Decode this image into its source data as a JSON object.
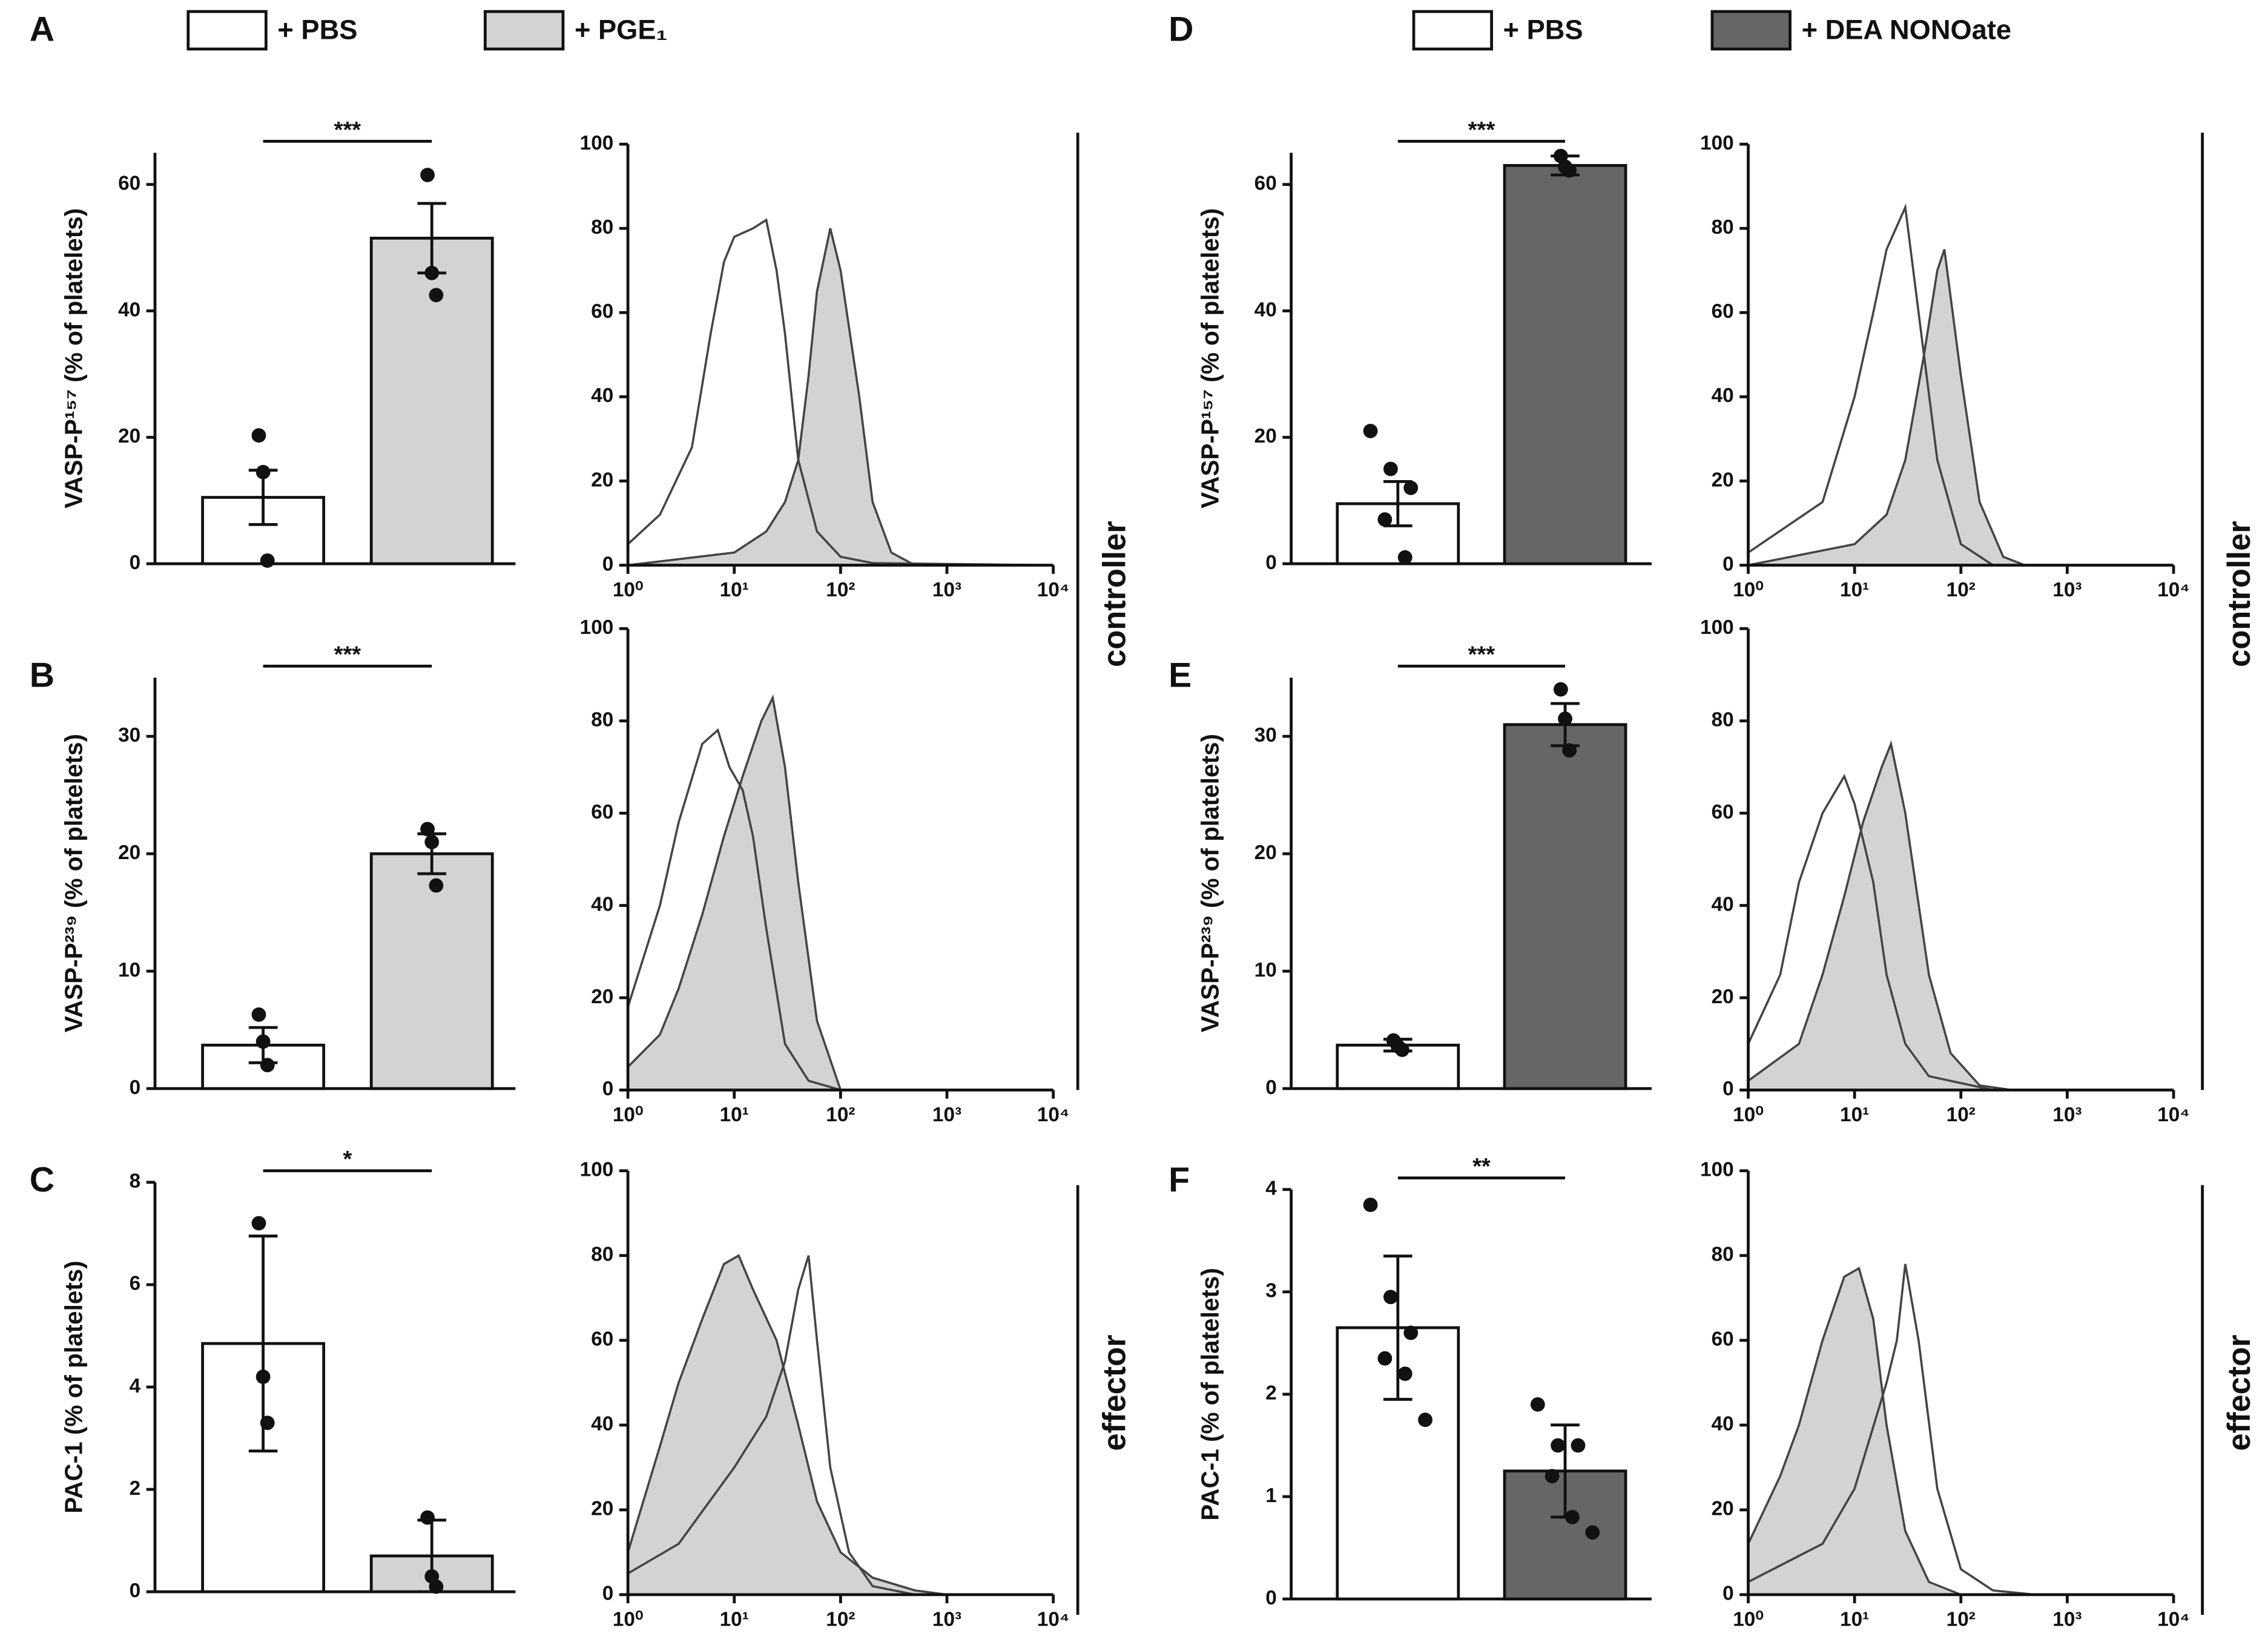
{
  "legends": [
    {
      "items": [
        {
          "label": "+ PBS",
          "color": "#ffffff"
        },
        {
          "label": "+ PGE₁",
          "color": "#d3d3d3"
        }
      ]
    },
    {
      "items": [
        {
          "label": "+ PBS",
          "color": "#ffffff"
        },
        {
          "label": "+ DEA NONOate",
          "color": "#666666"
        }
      ]
    }
  ],
  "side_labels": [
    "controller",
    "effector",
    "controller",
    "effector"
  ],
  "chart_data": [
    {
      "type": "bar",
      "label": "A",
      "ylabel": "VASP-P¹⁵⁷ (% of platelets)",
      "categories": [
        null,
        null
      ],
      "values": [
        10.5,
        51.5
      ],
      "errors": [
        4.3,
        5.5
      ],
      "points": [
        [
          20.3,
          14.5,
          0.5
        ],
        [
          61.5,
          46,
          42.5
        ]
      ],
      "colors": [
        "#ffffff",
        "#d3d3d3"
      ],
      "annotation": "***",
      "ylim": [
        0,
        65
      ],
      "yticks": [
        0,
        20,
        40,
        60
      ]
    },
    {
      "type": "density",
      "xscale": "log",
      "xlim": [
        1,
        10000
      ],
      "xticks": [
        {
          "value": 1,
          "label": "10⁰"
        },
        {
          "value": 10,
          "label": "10¹"
        },
        {
          "value": 100,
          "label": "10²"
        },
        {
          "value": 1000,
          "label": "10³"
        },
        {
          "value": 10000,
          "label": "10⁴"
        }
      ],
      "ylim": [
        0,
        100
      ],
      "yticks": [
        0,
        20,
        40,
        60,
        80,
        100
      ],
      "series": [
        {
          "color": "#d3d3d3",
          "filled": true,
          "x": [
            1,
            10,
            20,
            30,
            40,
            50,
            60,
            80,
            100,
            150,
            200,
            300,
            500
          ],
          "values": [
            0,
            3,
            8,
            15,
            25,
            45,
            65,
            80,
            70,
            40,
            15,
            3,
            0
          ]
        },
        {
          "color": "#ffffff",
          "filled": false,
          "x": [
            1,
            2,
            4,
            6,
            8,
            10,
            15,
            20,
            25,
            30,
            40,
            60,
            100,
            200,
            10000
          ],
          "values": [
            5,
            12,
            28,
            55,
            72,
            78,
            80,
            82,
            70,
            55,
            25,
            8,
            2,
            0.5,
            0
          ]
        }
      ]
    },
    {
      "type": "bar",
      "label": "B",
      "ylabel": "VASP-P²³⁹ (% of platelets)",
      "categories": [
        null,
        null
      ],
      "values": [
        3.7,
        20
      ],
      "errors": [
        1.5,
        1.7
      ],
      "points": [
        [
          6.3,
          4,
          2
        ],
        [
          22.1,
          21,
          17.3
        ]
      ],
      "colors": [
        "#ffffff",
        "#d3d3d3"
      ],
      "annotation": "***",
      "ylim": [
        0,
        35
      ],
      "yticks": [
        0,
        10,
        20,
        30
      ]
    },
    {
      "type": "density",
      "xscale": "log",
      "xlim": [
        1,
        10000
      ],
      "xticks": [
        {
          "value": 1,
          "label": "10⁰"
        },
        {
          "value": 10,
          "label": "10¹"
        },
        {
          "value": 100,
          "label": "10²"
        },
        {
          "value": 1000,
          "label": "10³"
        },
        {
          "value": 10000,
          "label": "10⁴"
        }
      ],
      "ylim": [
        0,
        100
      ],
      "yticks": [
        0,
        20,
        40,
        60,
        80,
        100
      ],
      "series": [
        {
          "color": "#d3d3d3",
          "filled": true,
          "x": [
            1,
            2,
            3,
            5,
            8,
            12,
            18,
            23,
            30,
            40,
            60,
            100
          ],
          "values": [
            5,
            12,
            22,
            38,
            55,
            68,
            80,
            85,
            70,
            45,
            15,
            0
          ]
        },
        {
          "color": "#ffffff",
          "filled": false,
          "x": [
            1,
            2,
            3,
            5,
            7,
            9,
            12,
            15,
            20,
            30,
            50,
            100
          ],
          "values": [
            18,
            40,
            58,
            75,
            78,
            70,
            65,
            55,
            35,
            10,
            2,
            0
          ]
        }
      ]
    },
    {
      "type": "bar",
      "label": "C",
      "ylabel": "PAC-1 (% of  platelets)",
      "categories": [
        null,
        null
      ],
      "values": [
        4.85,
        0.7
      ],
      "errors": [
        2.1,
        0.7
      ],
      "points": [
        [
          7.2,
          4.2,
          3.3
        ],
        [
          1.45,
          0.3,
          0.1
        ]
      ],
      "colors": [
        "#ffffff",
        "#d3d3d3"
      ],
      "annotation": "*",
      "ylim": [
        0,
        8
      ],
      "yticks": [
        0,
        2,
        4,
        6,
        8
      ]
    },
    {
      "type": "density",
      "xscale": "log",
      "xlim": [
        1,
        10000
      ],
      "xticks": [
        {
          "value": 1,
          "label": "10⁰"
        },
        {
          "value": 10,
          "label": "10¹"
        },
        {
          "value": 100,
          "label": "10²"
        },
        {
          "value": 1000,
          "label": "10³"
        },
        {
          "value": 10000,
          "label": "10⁴"
        }
      ],
      "ylim": [
        0,
        100
      ],
      "yticks": [
        0,
        20,
        40,
        60,
        80,
        100
      ],
      "series": [
        {
          "color": "#d3d3d3",
          "filled": true,
          "x": [
            1,
            2,
            3,
            5,
            8,
            11,
            15,
            25,
            40,
            60,
            100,
            200,
            500,
            1000
          ],
          "values": [
            10,
            35,
            50,
            65,
            78,
            80,
            72,
            60,
            40,
            22,
            10,
            4,
            1,
            0
          ]
        },
        {
          "color": "#ffffff",
          "filled": false,
          "x": [
            1,
            3,
            10,
            20,
            30,
            40,
            50,
            60,
            80,
            120,
            200,
            500
          ],
          "values": [
            5,
            12,
            30,
            42,
            55,
            72,
            80,
            60,
            30,
            10,
            2,
            0
          ]
        }
      ]
    },
    {
      "type": "bar",
      "label": "D",
      "ylabel": "VASP-P¹⁵⁷ (% of platelets)",
      "categories": [
        null,
        null
      ],
      "values": [
        9.5,
        63
      ],
      "errors": [
        3.5,
        1.5
      ],
      "points": [
        [
          21,
          15,
          12,
          7,
          1
        ],
        [
          64.5,
          62.8,
          62.2
        ]
      ],
      "colors": [
        "#ffffff",
        "#666666"
      ],
      "annotation": "***",
      "ylim": [
        0,
        65
      ],
      "yticks": [
        0,
        20,
        40,
        60
      ]
    },
    {
      "type": "density",
      "xscale": "log",
      "xlim": [
        1,
        10000
      ],
      "xticks": [
        {
          "value": 1,
          "label": "10⁰"
        },
        {
          "value": 10,
          "label": "10¹"
        },
        {
          "value": 100,
          "label": "10²"
        },
        {
          "value": 1000,
          "label": "10³"
        },
        {
          "value": 10000,
          "label": "10⁴"
        }
      ],
      "ylim": [
        0,
        100
      ],
      "yticks": [
        0,
        20,
        40,
        60,
        80,
        100
      ],
      "series": [
        {
          "color": "#d3d3d3",
          "filled": true,
          "x": [
            1,
            10,
            20,
            30,
            45,
            60,
            70,
            100,
            150,
            250,
            400
          ],
          "values": [
            0,
            5,
            12,
            25,
            50,
            70,
            75,
            45,
            15,
            2,
            0
          ]
        },
        {
          "color": "#ffffff",
          "filled": false,
          "x": [
            1,
            5,
            10,
            15,
            20,
            30,
            40,
            60,
            100,
            200
          ],
          "values": [
            3,
            15,
            40,
            60,
            75,
            85,
            60,
            25,
            5,
            0
          ]
        }
      ]
    },
    {
      "type": "bar",
      "label": "E",
      "ylabel": "VASP-P²³⁹ (% of platelets)",
      "categories": [
        null,
        null
      ],
      "values": [
        3.7,
        31
      ],
      "errors": [
        0.5,
        1.8
      ],
      "points": [
        [
          4.1,
          3.6,
          3.3
        ],
        [
          34,
          31.5,
          28.8
        ]
      ],
      "colors": [
        "#ffffff",
        "#666666"
      ],
      "annotation": "***",
      "ylim": [
        0,
        35
      ],
      "yticks": [
        0,
        10,
        20,
        30
      ]
    },
    {
      "type": "density",
      "xscale": "log",
      "xlim": [
        1,
        10000
      ],
      "xticks": [
        {
          "value": 1,
          "label": "10⁰"
        },
        {
          "value": 10,
          "label": "10¹"
        },
        {
          "value": 100,
          "label": "10²"
        },
        {
          "value": 1000,
          "label": "10³"
        },
        {
          "value": 10000,
          "label": "10⁴"
        }
      ],
      "ylim": [
        0,
        100
      ],
      "yticks": [
        0,
        20,
        40,
        60,
        80,
        100
      ],
      "series": [
        {
          "color": "#d3d3d3",
          "filled": true,
          "x": [
            1,
            3,
            5,
            8,
            12,
            18,
            22,
            30,
            50,
            80,
            150,
            300
          ],
          "values": [
            2,
            10,
            25,
            42,
            58,
            70,
            75,
            60,
            25,
            8,
            1,
            0
          ]
        },
        {
          "color": "#ffffff",
          "filled": false,
          "x": [
            1,
            2,
            3,
            5,
            8,
            10,
            15,
            20,
            30,
            50,
            200
          ],
          "values": [
            10,
            25,
            45,
            60,
            68,
            62,
            45,
            25,
            10,
            3,
            0
          ]
        }
      ]
    },
    {
      "type": "bar",
      "label": "F",
      "ylabel": "PAC-1 (% of platelets)",
      "categories": [
        null,
        null
      ],
      "values": [
        2.65,
        1.25
      ],
      "errors": [
        0.7,
        0.45
      ],
      "points": [
        [
          3.85,
          2.95,
          2.6,
          2.35,
          2.2,
          1.75
        ],
        [
          1.9,
          1.5,
          1.5,
          1.2,
          0.8,
          0.65
        ]
      ],
      "colors": [
        "#ffffff",
        "#666666"
      ],
      "annotation": "**",
      "ylim": [
        0,
        4
      ],
      "yticks": [
        0,
        1,
        2,
        3,
        4
      ]
    },
    {
      "type": "density",
      "xscale": "log",
      "xlim": [
        1,
        10000
      ],
      "xticks": [
        {
          "value": 1,
          "label": "10⁰"
        },
        {
          "value": 10,
          "label": "10¹"
        },
        {
          "value": 100,
          "label": "10²"
        },
        {
          "value": 1000,
          "label": "10³"
        },
        {
          "value": 10000,
          "label": "10⁴"
        }
      ],
      "ylim": [
        0,
        100
      ],
      "yticks": [
        0,
        20,
        40,
        60,
        80,
        100
      ],
      "series": [
        {
          "color": "#d3d3d3",
          "filled": true,
          "x": [
            1,
            2,
            3,
            5,
            8,
            11,
            15,
            20,
            30,
            50,
            100
          ],
          "values": [
            12,
            28,
            40,
            60,
            75,
            77,
            65,
            40,
            15,
            3,
            0
          ]
        },
        {
          "color": "#ffffff",
          "filled": false,
          "x": [
            1,
            5,
            10,
            20,
            25,
            30,
            40,
            60,
            100,
            200,
            500
          ],
          "values": [
            3,
            12,
            25,
            50,
            60,
            78,
            60,
            25,
            6,
            1,
            0
          ]
        }
      ]
    }
  ]
}
